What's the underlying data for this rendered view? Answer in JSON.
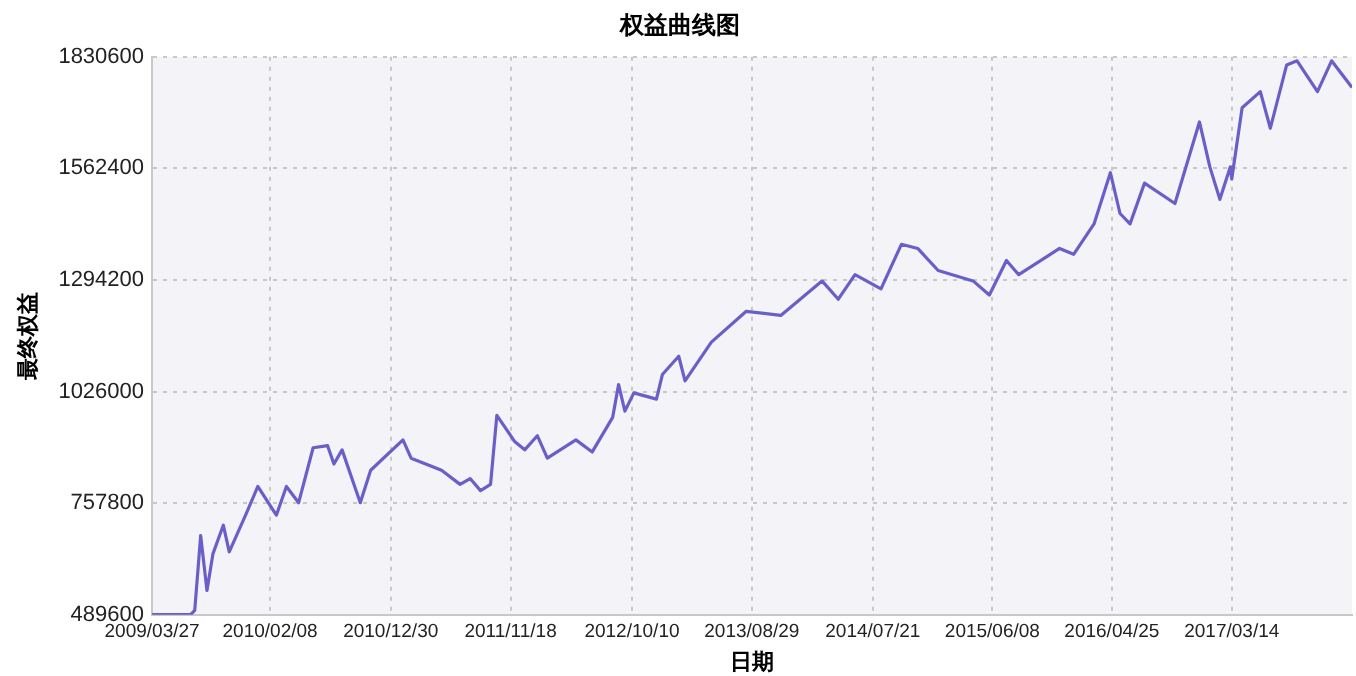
{
  "chart_data": {
    "type": "line",
    "title": "权益曲线图",
    "xlabel": "日期",
    "ylabel": "最终权益",
    "x": [
      "2009-03-27",
      "2009-07-09",
      "2009-07-20",
      "2009-08-05",
      "2009-08-22",
      "2009-09-07",
      "2009-10-05",
      "2009-10-21",
      "2009-12-04",
      "2010-01-06",
      "2010-02-25",
      "2010-03-24",
      "2010-04-26",
      "2010-06-04",
      "2010-07-13",
      "2010-07-30",
      "2010-08-21",
      "2010-10-09",
      "2010-11-06",
      "2011-02-01",
      "2011-02-23",
      "2011-05-16",
      "2011-07-05",
      "2011-08-01",
      "2011-08-29",
      "2011-09-25",
      "2011-10-12",
      "2011-11-29",
      "2011-12-26",
      "2012-01-29",
      "2012-02-25",
      "2012-05-12",
      "2012-06-25",
      "2012-08-19",
      "2012-09-04",
      "2012-09-21",
      "2012-10-15",
      "2012-12-15",
      "2012-12-31",
      "2013-02-13",
      "2013-03-02",
      "2013-05-12",
      "2013-08-14",
      "2013-11-15",
      "2014-03-06",
      "2014-04-19",
      "2014-06-03",
      "2014-08-12",
      "2014-10-06",
      "2014-11-19",
      "2015-01-13",
      "2015-04-17",
      "2015-05-31",
      "2015-07-16",
      "2015-08-18",
      "2015-12-06",
      "2016-01-13",
      "2016-03-08",
      "2016-04-21",
      "2016-05-17",
      "2016-06-13",
      "2016-07-22",
      "2016-10-12",
      "2016-12-17",
      "2017-01-14",
      "2017-02-10",
      "2017-03-10",
      "2017-03-14",
      "2017-04-11",
      "2017-05-30",
      "2017-06-26",
      "2017-08-09",
      "2017-09-06",
      "2017-10-31",
      "2017-12-08",
      "2018-02-01"
    ],
    "series": [
      {
        "color": "#6a5fc8",
        "values": [
          490000,
          490000,
          500000,
          680000,
          548000,
          636000,
          705000,
          641000,
          729000,
          798000,
          729000,
          798000,
          759000,
          891000,
          896000,
          852000,
          886000,
          759000,
          837000,
          910000,
          866000,
          837000,
          803000,
          817000,
          788000,
          803000,
          969000,
          906000,
          886000,
          920000,
          866000,
          910000,
          881000,
          964000,
          1043000,
          979000,
          1023000,
          1008000,
          1067000,
          1111000,
          1052000,
          1145000,
          1219000,
          1209000,
          1292000,
          1248000,
          1307000,
          1273000,
          1380000,
          1370000,
          1317000,
          1292000,
          1258000,
          1341000,
          1307000,
          1370000,
          1356000,
          1429000,
          1552000,
          1454000,
          1429000,
          1527000,
          1478000,
          1674000,
          1566000,
          1488000,
          1566000,
          1537000,
          1708000,
          1747000,
          1659000,
          1811000,
          1821000,
          1747000,
          1821000,
          1757000
        ]
      }
    ],
    "xlim": [
      "2009-03-27",
      "2018-02-01"
    ],
    "xticks": [
      {
        "value": "2009-03-27",
        "label": "2009/03/27"
      },
      {
        "value": "2010-02-08",
        "label": "2010/02/08"
      },
      {
        "value": "2010-12-30",
        "label": "2010/12/30"
      },
      {
        "value": "2011-11-18",
        "label": "2011/11/18"
      },
      {
        "value": "2012-10-10",
        "label": "2012/10/10"
      },
      {
        "value": "2013-08-29",
        "label": "2013/08/29"
      },
      {
        "value": "2014-07-21",
        "label": "2014/07/21"
      },
      {
        "value": "2015-06-08",
        "label": "2015/06/08"
      },
      {
        "value": "2016-04-25",
        "label": "2016/04/25"
      },
      {
        "value": "2017-03-14",
        "label": "2017/03/14"
      }
    ],
    "ylim": [
      489600,
      1830600
    ],
    "yticks": [
      489600,
      757800,
      1026000,
      1294200,
      1562400,
      1830600
    ],
    "grid": true,
    "legend": false,
    "marker": "none",
    "line_style": "solid"
  }
}
